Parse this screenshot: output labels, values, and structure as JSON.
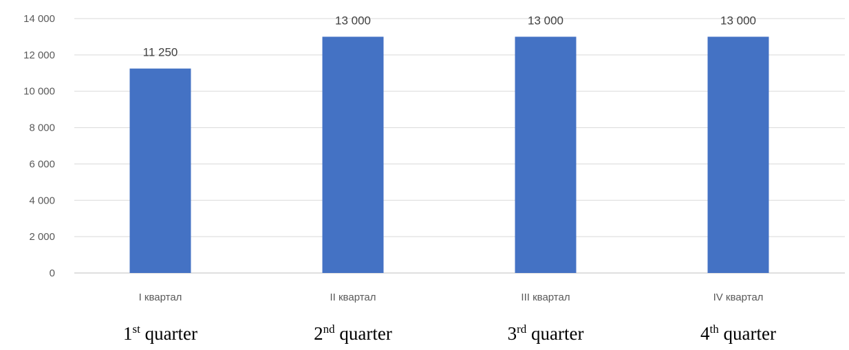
{
  "chart_data": {
    "type": "bar",
    "categories": [
      "I квартал",
      "II квартал",
      "III квартал",
      "IV квартал"
    ],
    "values": [
      11250,
      13000,
      13000,
      13000
    ],
    "data_labels": [
      "11 250",
      "13 000",
      "13 000",
      "13 000"
    ],
    "y_ticks": [
      0,
      2000,
      4000,
      6000,
      8000,
      10000,
      12000,
      14000
    ],
    "y_tick_labels": [
      "0",
      "2 000",
      "4 000",
      "6 000",
      "8 000",
      "10 000",
      "12 000",
      "14 000"
    ],
    "ylim": [
      0,
      14000
    ],
    "grid": true,
    "legend": "none",
    "bar_color": "#4472C4"
  },
  "translations": [
    {
      "num": "1",
      "sup": "st",
      "word": "quarter"
    },
    {
      "num": "2",
      "sup": "nd",
      "word": "quarter"
    },
    {
      "num": "3",
      "sup": "rd",
      "word": "quarter"
    },
    {
      "num": "4",
      "sup": "th",
      "word": "quarter"
    }
  ]
}
